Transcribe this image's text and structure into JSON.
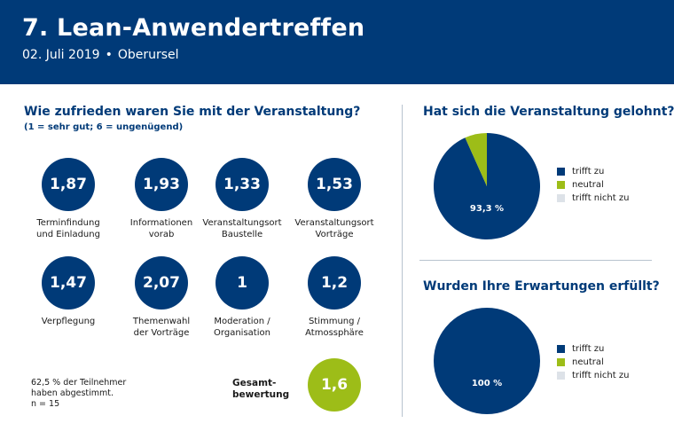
{
  "header": {
    "title": "7. Lean-Anwendertreffen",
    "date": "02. Juli 2019",
    "separator": "•",
    "location": "Oberursel"
  },
  "satisfaction": {
    "question": "Wie zufrieden waren Sie mit der Veranstaltung?",
    "scale_note": "(1 = sehr gut; 6 = ungenügend)",
    "ratings": [
      {
        "value": "1,87",
        "label": "Terminfindung\nund Einladung"
      },
      {
        "value": "1,93",
        "label": "Informationen\nvorab"
      },
      {
        "value": "1,33",
        "label": "Veranstaltungsort\nBaustelle"
      },
      {
        "value": "1,53",
        "label": "Veranstaltungsort\nVorträge"
      },
      {
        "value": "1,47",
        "label": "Verpflegung"
      },
      {
        "value": "2,07",
        "label": "Themenwahl\nder Vorträge"
      },
      {
        "value": "1",
        "label": "Moderation /\nOrganisation"
      },
      {
        "value": "1,2",
        "label": "Stimmung /\nAtmossphäre"
      }
    ],
    "footnote": "62,5 % der Teilnehmer\nhaben abgestimmt.\nn = 15",
    "overall_label": "Gesamt-\nbewertung",
    "overall_value": "1,6"
  },
  "colors": {
    "navy": "#003a78",
    "green": "#9dbd18",
    "lightgray": "#dde2e8"
  },
  "chart_data": [
    {
      "type": "pie",
      "title": "Hat sich die Veranstaltung gelohnt?",
      "categories": [
        "trifft zu",
        "neutral",
        "trifft nicht zu"
      ],
      "values": [
        93.3,
        6.7,
        0
      ],
      "colors": [
        "#003a78",
        "#9dbd18",
        "#dde2e8"
      ],
      "slice_label": "93,3 %",
      "legend_position": "right"
    },
    {
      "type": "pie",
      "title": "Wurden Ihre Erwartungen erfüllt?",
      "categories": [
        "trifft zu",
        "neutral",
        "trifft nicht zu"
      ],
      "values": [
        100,
        0,
        0
      ],
      "colors": [
        "#003a78",
        "#9dbd18",
        "#dde2e8"
      ],
      "slice_label": "100 %",
      "legend_position": "right"
    }
  ]
}
